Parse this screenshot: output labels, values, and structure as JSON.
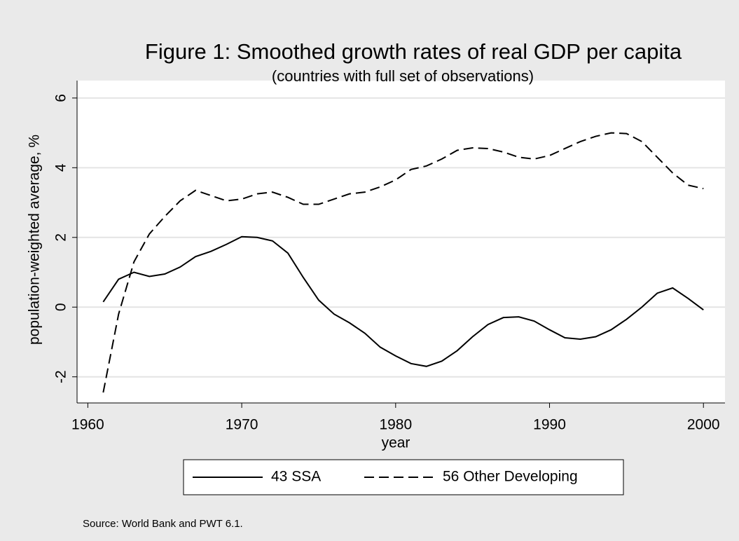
{
  "chart_data": {
    "type": "line",
    "title": "Figure 1: Smoothed growth rates of real GDP per capita",
    "subtitle": "(countries with full set of observations)",
    "x_label": "year",
    "y_label": "population-weighted average, %",
    "note": "Source: World Bank and PWT 6.1.",
    "x": [
      1961,
      1962,
      1963,
      1964,
      1965,
      1966,
      1967,
      1968,
      1969,
      1970,
      1971,
      1972,
      1973,
      1974,
      1975,
      1976,
      1977,
      1978,
      1979,
      1980,
      1981,
      1982,
      1983,
      1984,
      1985,
      1986,
      1987,
      1988,
      1989,
      1990,
      1991,
      1992,
      1993,
      1994,
      1995,
      1996,
      1997,
      1998,
      1999,
      2000
    ],
    "series": [
      {
        "name": "43 SSA",
        "color": "#000000",
        "dash": "solid",
        "values": [
          0.15,
          0.8,
          1.0,
          0.88,
          0.95,
          1.15,
          1.45,
          1.6,
          1.8,
          2.02,
          2.0,
          1.9,
          1.55,
          0.85,
          0.2,
          -0.2,
          -0.45,
          -0.75,
          -1.15,
          -1.4,
          -1.62,
          -1.7,
          -1.55,
          -1.25,
          -0.85,
          -0.5,
          -0.3,
          -0.28,
          -0.4,
          -0.65,
          -0.88,
          -0.92,
          -0.85,
          -0.65,
          -0.35,
          0.0,
          0.4,
          0.55,
          0.25,
          -0.08
        ]
      },
      {
        "name": "56 Other Developing",
        "color": "#000000",
        "dash": "dashed",
        "values": [
          -2.45,
          -0.2,
          1.3,
          2.1,
          2.6,
          3.05,
          3.35,
          3.2,
          3.05,
          3.1,
          3.25,
          3.3,
          3.15,
          2.95,
          2.95,
          3.1,
          3.25,
          3.3,
          3.45,
          3.65,
          3.95,
          4.05,
          4.25,
          4.5,
          4.57,
          4.55,
          4.45,
          4.3,
          4.25,
          4.35,
          4.55,
          4.75,
          4.9,
          5.0,
          4.98,
          4.75,
          4.3,
          3.85,
          3.5,
          3.4
        ]
      }
    ],
    "xlim": [
      1959.3,
      2001.4
    ],
    "xticks": [
      1960,
      1970,
      1980,
      1990,
      2000
    ],
    "ylim": [
      -2.75,
      6.5
    ],
    "yticks": [
      -2,
      0,
      2,
      4,
      6
    ],
    "grid": true,
    "legend": "bottom"
  }
}
